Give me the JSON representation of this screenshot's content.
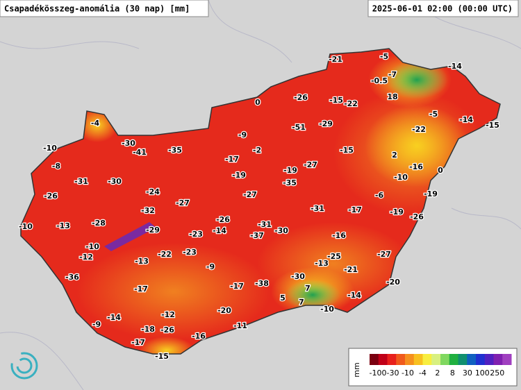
{
  "header": {
    "title": "Csapadékösszeg-anomália (30 nap) [mm]",
    "timestamp": "2025-06-01 02:00 (00:00 UTC)"
  },
  "stations": [
    -21,
    -5,
    -14,
    -7,
    -0.5,
    18,
    -26,
    -15,
    -22,
    0,
    -5,
    -4,
    -51,
    -29,
    -22,
    -14,
    -15,
    -9,
    -10,
    -30,
    -41,
    -35,
    -2,
    -15,
    2,
    -17,
    -27,
    -16,
    0,
    -8,
    -19,
    -19,
    -10,
    -31,
    -30,
    -35,
    -24,
    -27,
    -6,
    -19,
    -26,
    -27,
    -31,
    -17,
    -19,
    -32,
    -26,
    -26,
    -10,
    -13,
    -28,
    -29,
    -31,
    -30,
    -14,
    -23,
    -37,
    -16,
    -10,
    -22,
    -23,
    -25,
    -27,
    -12,
    -13,
    -13,
    -9,
    -21,
    -36,
    -30,
    -20,
    -17,
    -17,
    -38,
    7,
    -14,
    5,
    7,
    -20,
    -10,
    -12,
    -14,
    -9,
    -11,
    -18,
    -26,
    -16,
    -17,
    -15
  ],
  "legend": {
    "unit": "mm",
    "labels": [
      -100,
      -30,
      -10,
      -4,
      2,
      8,
      30,
      100,
      250
    ],
    "colors": [
      "#7a0010",
      "#c00018",
      "#e8201c",
      "#f05a1c",
      "#f5901e",
      "#f8c020",
      "#f8ee40",
      "#d8f080",
      "#80d860",
      "#20b040",
      "#109070",
      "#1060c0",
      "#2030d0",
      "#5020c0",
      "#8020b0",
      "#a040c0"
    ]
  }
}
